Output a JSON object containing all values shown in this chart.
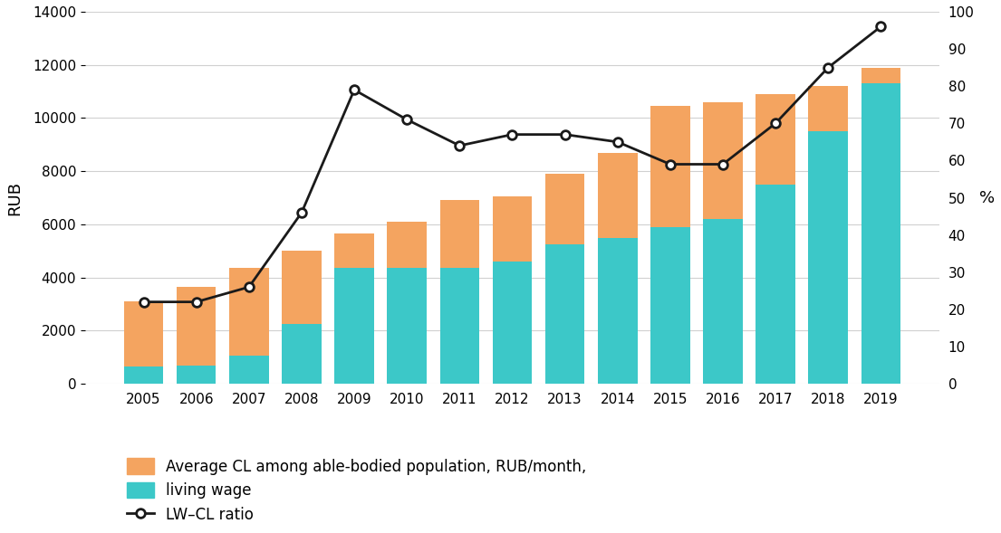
{
  "years": [
    2005,
    2006,
    2007,
    2008,
    2009,
    2010,
    2011,
    2012,
    2013,
    2014,
    2015,
    2016,
    2017,
    2018,
    2019
  ],
  "avg_cl": [
    3100,
    3650,
    4350,
    5000,
    5650,
    6100,
    6900,
    7050,
    7900,
    8700,
    10450,
    10600,
    10900,
    11200,
    11900
  ],
  "living_wage": [
    650,
    700,
    1050,
    2250,
    4350,
    4350,
    4350,
    4600,
    5250,
    5500,
    5900,
    6200,
    7500,
    9500,
    11300
  ],
  "lw_cl_ratio": [
    22,
    22,
    26,
    46,
    79,
    71,
    64,
    67,
    67,
    65,
    59,
    59,
    70,
    85,
    96
  ],
  "bar_color_cl": "#F4A460",
  "bar_color_lw": "#3CC8C8",
  "line_color": "#1a1a1a",
  "ylabel_left": "RUB",
  "ylabel_right": "%",
  "ylim_left": [
    0,
    14000
  ],
  "ylim_right": [
    0,
    100
  ],
  "yticks_left": [
    0,
    2000,
    4000,
    6000,
    8000,
    10000,
    12000,
    14000
  ],
  "yticks_right": [
    0,
    10,
    20,
    30,
    40,
    50,
    60,
    70,
    80,
    90,
    100
  ],
  "legend_labels": [
    "Average CL among able-bodied population, RUB/month,",
    "living wage",
    "LW–CL ratio"
  ],
  "background_color": "#ffffff",
  "grid_color": "#d0d0d0"
}
